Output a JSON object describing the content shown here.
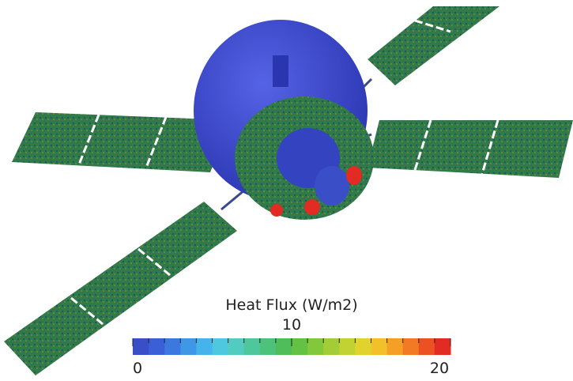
{
  "colorbar": {
    "title": "Heat Flux (W/m2)",
    "range": [
      0,
      20
    ],
    "ticks": [
      0,
      10,
      20
    ],
    "colors": [
      "#3a4fc7",
      "#3b5fd6",
      "#3c78e0",
      "#3f98e6",
      "#45b4ea",
      "#4ec8df",
      "#52ccc0",
      "#4fc79c",
      "#4cc27a",
      "#4fbe5a",
      "#63c243",
      "#82c83a",
      "#a2cd36",
      "#c2d232",
      "#e0d32e",
      "#f2c02a",
      "#f59f27",
      "#f27a24",
      "#ec5122",
      "#e22b22"
    ]
  }
}
